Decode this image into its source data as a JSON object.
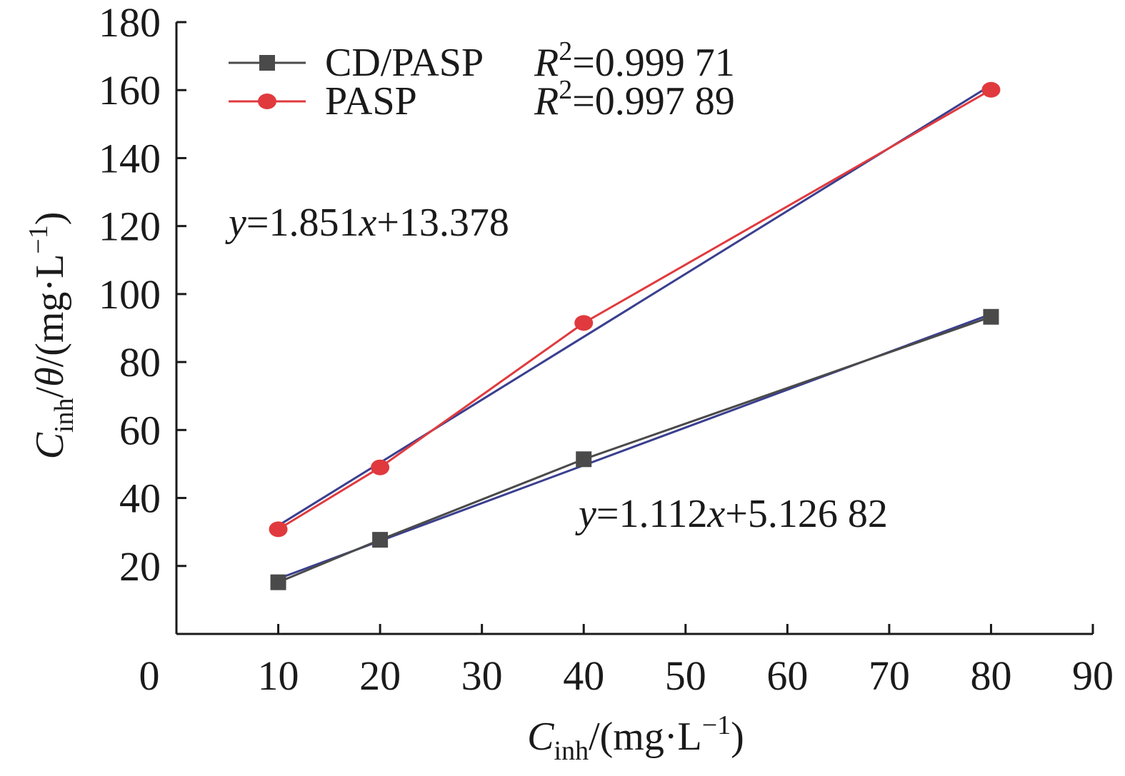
{
  "chart_data": {
    "type": "line",
    "title": "",
    "xlabel": {
      "var": "C",
      "sub": "inh",
      "unit_pre": "/(mg·L",
      "unit_sup": "−1",
      "unit_post": ")"
    },
    "ylabel": {
      "var": "C",
      "sub": "inh",
      "mid": "/",
      "theta": "θ",
      "unit_pre": "/(mg·L",
      "unit_sup": "−1",
      "unit_post": ")"
    },
    "xlim": [
      0,
      90
    ],
    "ylim": [
      0,
      180
    ],
    "x_ticks": [
      0,
      10,
      20,
      30,
      40,
      50,
      60,
      70,
      80,
      90
    ],
    "y_ticks": [
      20,
      40,
      60,
      80,
      100,
      120,
      140,
      160,
      180
    ],
    "series": [
      {
        "name": "CD/PASP",
        "r2_label": "R",
        "r2_sup": "2",
        "r2_value": "=0.999 71",
        "marker": "square",
        "color": "#4a4a4a",
        "x": [
          10,
          20,
          40,
          80
        ],
        "y": [
          15.2,
          27.7,
          51.4,
          93.3
        ],
        "fit": {
          "slope": 1.112,
          "intercept": 5.12682,
          "color": "#3a3f8f"
        },
        "equation": {
          "y": "y",
          "eq1": "=1.112",
          "x": "x",
          "eq2": "+5.126 82"
        }
      },
      {
        "name": "PASP",
        "r2_label": "R",
        "r2_sup": "2",
        "r2_value": "=0.997 89",
        "marker": "circle",
        "color": "#e03a3e",
        "x": [
          10,
          20,
          40,
          80
        ],
        "y": [
          30.8,
          49.0,
          91.5,
          160.1
        ],
        "fit": {
          "slope": 1.851,
          "intercept": 13.378,
          "color": "#3a3f8f"
        },
        "equation": {
          "y": "y",
          "eq1": "=1.851",
          "x": "x",
          "eq2": "+13.378"
        }
      }
    ],
    "legend_position": "top-left"
  }
}
